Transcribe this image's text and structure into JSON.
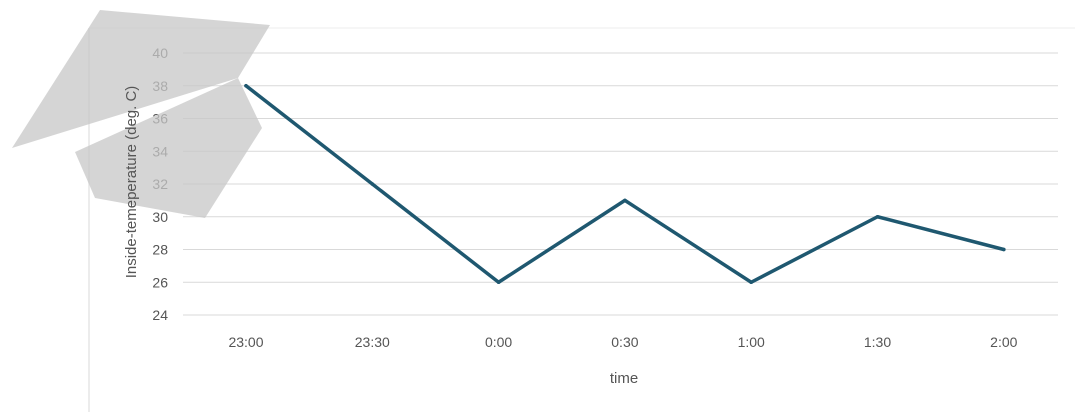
{
  "chart_data": {
    "type": "line",
    "title": "",
    "xlabel": "time",
    "ylabel": "Inside-temeperature (deg. C)",
    "categories": [
      "23:00",
      "23:30",
      "0:00",
      "0:30",
      "1:00",
      "1:30",
      "2:00"
    ],
    "series": [
      {
        "values": [
          38,
          32,
          26,
          31,
          26,
          30,
          28
        ],
        "color": "#1f5870"
      }
    ],
    "ylim": [
      24,
      40
    ],
    "yticks": [
      24,
      26,
      28,
      30,
      32,
      34,
      36,
      38,
      40
    ],
    "grid": true,
    "legend": "none"
  },
  "watermark": {
    "color": "#c8c8c8"
  }
}
